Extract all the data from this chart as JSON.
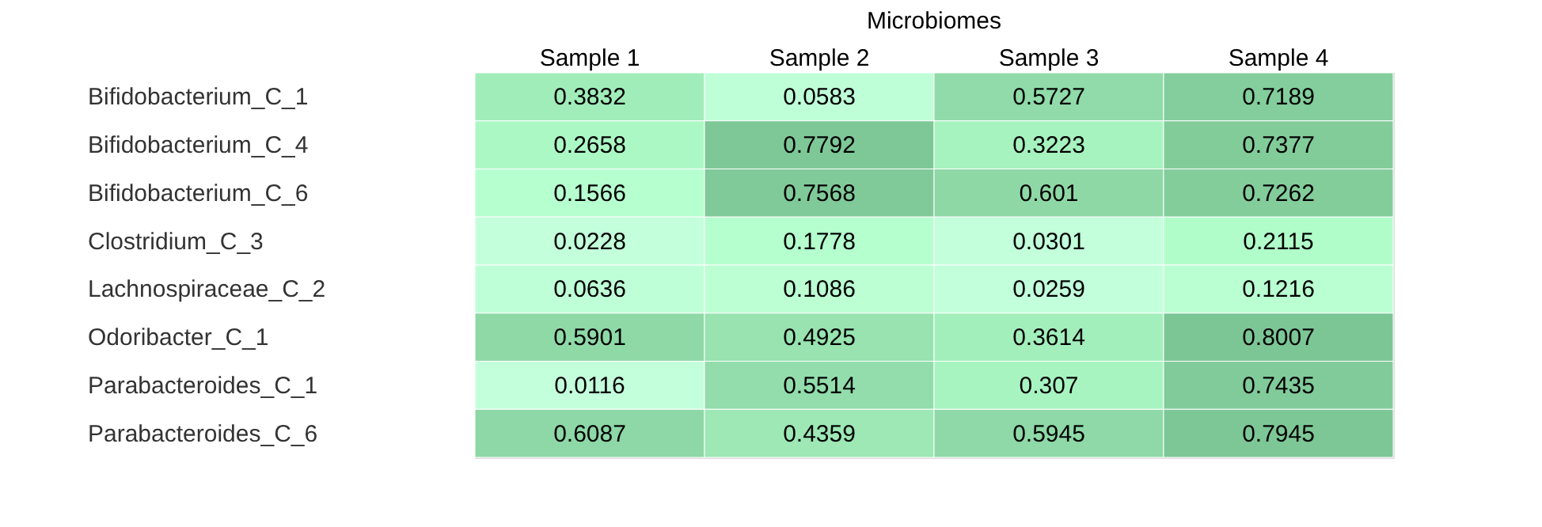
{
  "chart_data": {
    "type": "heatmap",
    "title": "Microbiomes",
    "categories": [
      "Sample 1",
      "Sample 2",
      "Sample 3",
      "Sample 4"
    ],
    "y_categories": [
      "Bifidobacterium_C_1",
      "Bifidobacterium_C_4",
      "Bifidobacterium_C_6",
      "Clostridium_C_3",
      "Lachnospiraceae_C_2",
      "Odoribacter_C_1",
      "Parabacteroides_C_1",
      "Parabacteroides_C_6"
    ],
    "cells": [
      [
        0.3832,
        0.0583,
        0.5727,
        0.7189
      ],
      [
        0.2658,
        0.7792,
        0.3223,
        0.7377
      ],
      [
        0.1566,
        0.7568,
        0.601,
        0.7262
      ],
      [
        0.0228,
        0.1778,
        0.0301,
        0.2115
      ],
      [
        0.0636,
        0.1086,
        0.0259,
        0.1216
      ],
      [
        0.5901,
        0.4925,
        0.3614,
        0.8007
      ],
      [
        0.0116,
        0.5514,
        0.307,
        0.7435
      ],
      [
        0.6087,
        0.4359,
        0.5945,
        0.7945
      ]
    ],
    "data_labels": true
  }
}
